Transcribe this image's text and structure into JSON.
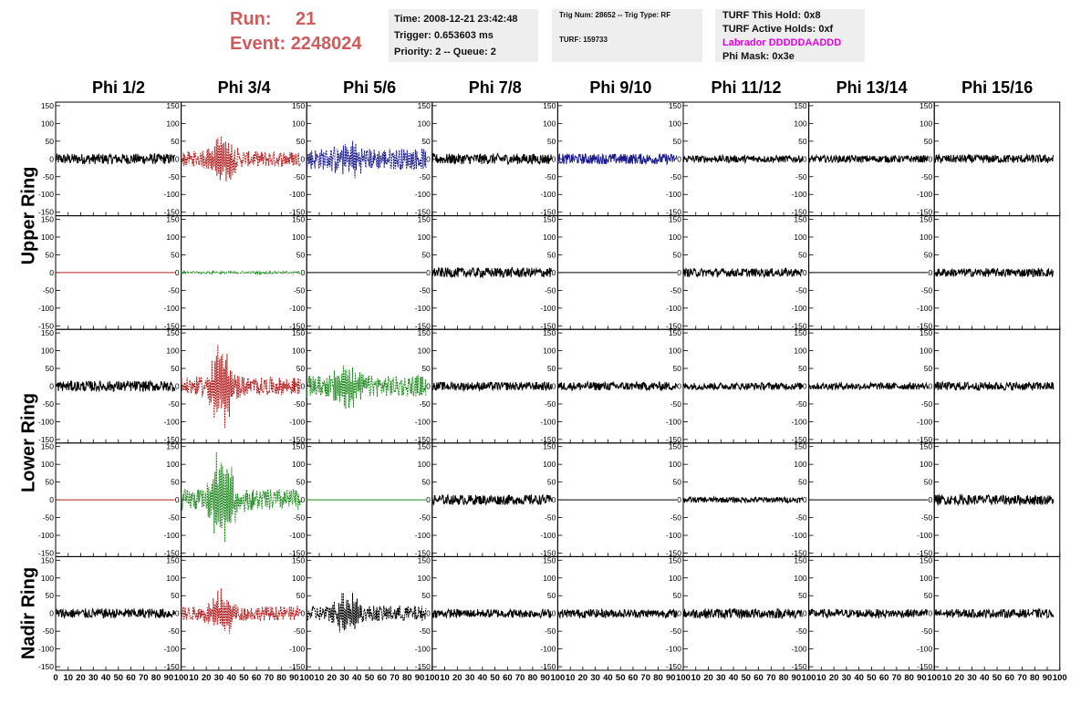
{
  "header": {
    "run_label": "Run:",
    "run_value": "21",
    "event_label": "Event:",
    "event_value": "2248024",
    "accent_color": "#cd5c5c"
  },
  "time_panel": {
    "time": "Time: 2008-12-21 23:42:48",
    "trigger": "Trigger: 0.653603 ms",
    "priority": "Priority: 2 -- Queue: 2"
  },
  "trig_panel": {
    "trig": "Trig Num: 28652 -- Trig Type: RF",
    "turf": "TURF: 159733"
  },
  "turf_panel": {
    "hold": "TURF This Hold: 0x8",
    "active": "TURF Active Holds: 0xf",
    "labrador": "Labrador DDDDDAADDD",
    "labrador_color": "#e600e6",
    "phimask": "Phi Mask: 0x3e"
  },
  "chart_data": {
    "type": "line",
    "columns": [
      "Phi 1/2",
      "Phi 3/4",
      "Phi 5/6",
      "Phi 7/8",
      "Phi 9/10",
      "Phi 11/12",
      "Phi 13/14",
      "Phi 15/16"
    ],
    "ring_labels": [
      "Upper Ring",
      "Lower Ring",
      "Nadir Ring"
    ],
    "xlim": [
      0,
      100
    ],
    "ylim": [
      -160,
      160
    ],
    "x_ticks": [
      0,
      10,
      20,
      30,
      40,
      50,
      60,
      70,
      80,
      90,
      100
    ],
    "y_ticks": [
      150,
      100,
      50,
      0,
      -50,
      -100,
      -150
    ],
    "x_tick_labels": [
      "0",
      "10",
      "20",
      "30",
      "40",
      "50",
      "60",
      "70",
      "80",
      "90",
      "100"
    ],
    "y_tick_labels": [
      "150",
      "100",
      "50",
      "0",
      "-50",
      "-100",
      "-150"
    ],
    "rows": [
      [
        {
          "color": "#000000",
          "dashed": false,
          "amp": 15,
          "peak": 0
        },
        {
          "color": "#b22222",
          "dashed": true,
          "amp": 22,
          "peak": 80
        },
        {
          "color": "#1a1a8c",
          "dashed": true,
          "amp": 30,
          "peak": 45
        },
        {
          "color": "#000000",
          "dashed": false,
          "amp": 15,
          "peak": 0
        },
        {
          "color": "#1a1a8c",
          "dashed": false,
          "amp": 15,
          "peak": 0
        },
        {
          "color": "#000000",
          "dashed": false,
          "amp": 10,
          "peak": 0
        },
        {
          "color": "#000000",
          "dashed": false,
          "amp": 10,
          "peak": 0
        },
        {
          "color": "#000000",
          "dashed": false,
          "amp": 12,
          "peak": 0
        }
      ],
      [
        {
          "color": "#b22222",
          "dashed": false,
          "amp": 0,
          "peak": 0
        },
        {
          "color": "#228b22",
          "dashed": true,
          "amp": 3,
          "peak": 0
        },
        {
          "color": "#000000",
          "dashed": false,
          "amp": 0,
          "peak": 0
        },
        {
          "color": "#000000",
          "dashed": false,
          "amp": 14,
          "peak": 0
        },
        {
          "color": "#000000",
          "dashed": false,
          "amp": 0,
          "peak": 0
        },
        {
          "color": "#000000",
          "dashed": false,
          "amp": 12,
          "peak": 0
        },
        {
          "color": "#000000",
          "dashed": false,
          "amp": 0,
          "peak": 0
        },
        {
          "color": "#000000",
          "dashed": false,
          "amp": 12,
          "peak": 0
        }
      ],
      [
        {
          "color": "#000000",
          "dashed": false,
          "amp": 15,
          "peak": 0
        },
        {
          "color": "#b22222",
          "dashed": true,
          "amp": 25,
          "peak": 130
        },
        {
          "color": "#228b22",
          "dashed": true,
          "amp": 30,
          "peak": 70
        },
        {
          "color": "#000000",
          "dashed": false,
          "amp": 12,
          "peak": 0
        },
        {
          "color": "#000000",
          "dashed": false,
          "amp": 12,
          "peak": 0
        },
        {
          "color": "#000000",
          "dashed": false,
          "amp": 10,
          "peak": 0
        },
        {
          "color": "#000000",
          "dashed": false,
          "amp": 10,
          "peak": 0
        },
        {
          "color": "#000000",
          "dashed": false,
          "amp": 12,
          "peak": 0
        }
      ],
      [
        {
          "color": "#b22222",
          "dashed": false,
          "amp": 0,
          "peak": 0
        },
        {
          "color": "#228b22",
          "dashed": true,
          "amp": 30,
          "peak": 140
        },
        {
          "color": "#228b22",
          "dashed": false,
          "amp": 0,
          "peak": 0
        },
        {
          "color": "#000000",
          "dashed": false,
          "amp": 14,
          "peak": 0
        },
        {
          "color": "#000000",
          "dashed": false,
          "amp": 0,
          "peak": 0
        },
        {
          "color": "#000000",
          "dashed": false,
          "amp": 8,
          "peak": 0
        },
        {
          "color": "#000000",
          "dashed": false,
          "amp": 0,
          "peak": 0
        },
        {
          "color": "#000000",
          "dashed": false,
          "amp": 14,
          "peak": 0
        }
      ],
      [
        {
          "color": "#000000",
          "dashed": false,
          "amp": 14,
          "peak": 0
        },
        {
          "color": "#b22222",
          "dashed": true,
          "amp": 20,
          "peak": 70
        },
        {
          "color": "#000000",
          "dashed": true,
          "amp": 22,
          "peak": 60
        },
        {
          "color": "#000000",
          "dashed": false,
          "amp": 12,
          "peak": 0
        },
        {
          "color": "#000000",
          "dashed": false,
          "amp": 12,
          "peak": 0
        },
        {
          "color": "#000000",
          "dashed": false,
          "amp": 14,
          "peak": 0
        },
        {
          "color": "#000000",
          "dashed": false,
          "amp": 12,
          "peak": 0
        },
        {
          "color": "#000000",
          "dashed": false,
          "amp": 12,
          "peak": 0
        }
      ]
    ]
  }
}
